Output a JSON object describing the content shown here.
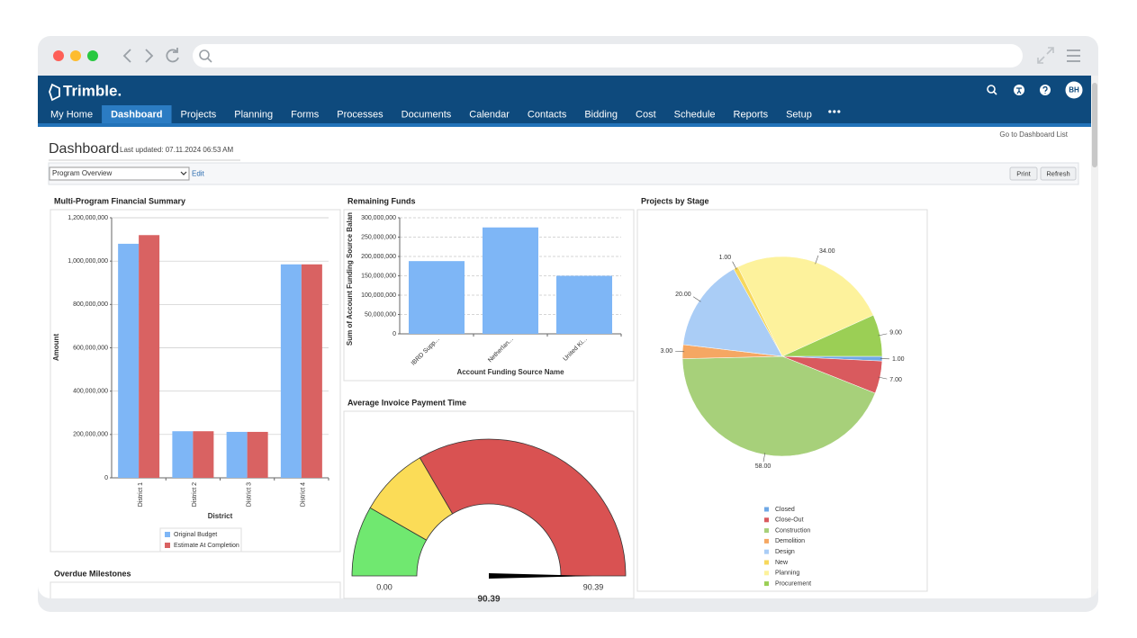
{
  "app": {
    "logo": "Trimble.",
    "tabs": [
      "My Home",
      "Dashboard",
      "Projects",
      "Planning",
      "Forms",
      "Processes",
      "Documents",
      "Calendar",
      "Contacts",
      "Bidding",
      "Cost",
      "Schedule",
      "Reports",
      "Setup"
    ],
    "active_tab": 1,
    "user": "BH"
  },
  "dashboard": {
    "title": "Dashboard",
    "last_updated": "Last updated: 07.11.2024 06:53 AM",
    "list_link": "Go to Dashboard List",
    "selector": "Program Overview",
    "edit": "Edit",
    "buttons": [
      "Print",
      "Refresh"
    ]
  },
  "chart_data": [
    {
      "type": "bar",
      "title": "Multi-Program Financial Summary",
      "ylabel": "Amount",
      "xlabel": "District",
      "categories": [
        "District 1",
        "District 2",
        "District 3",
        "District 4"
      ],
      "series": [
        {
          "name": "Original Budget",
          "color": "#7eb6f6",
          "values": [
            1080000000,
            215000000,
            212000000,
            985000000
          ]
        },
        {
          "name": "Estimate At Completion",
          "color": "#d96262",
          "values": [
            1120000000,
            215000000,
            212000000,
            985000000
          ]
        }
      ],
      "ylim": [
        0,
        1200000000
      ],
      "yticks": [
        0,
        {
          "value": 200000000,
          "label": "200,000,000"
        },
        {
          "value": 400000000,
          "label": "400,000,000"
        },
        {
          "value": 600000000,
          "label": "600,000,000"
        },
        {
          "value": 800000000,
          "label": "800,000,000"
        },
        {
          "value": 1000000000,
          "label": "1,000,000,000"
        },
        {
          "value": 1200000000,
          "label": "1,200,000,000"
        }
      ],
      "grid": true,
      "legend": "bottom"
    },
    {
      "type": "bar",
      "title": "Remaining Funds",
      "ylabel": "Sum  of Account Funding Source Balan",
      "xlabel": "Account Funding Source Name",
      "categories": [
        "IBRD Supp...",
        "Netherlan...",
        "United Ki..."
      ],
      "values": [
        188000000,
        275000000,
        150000000
      ],
      "color": "#7eb6f6",
      "ylim": [
        0,
        300000000
      ],
      "yticks": [
        0,
        {
          "value": 50000000,
          "label": "50,000,000"
        },
        {
          "value": 100000000,
          "label": "100,000,000"
        },
        {
          "value": 150000000,
          "label": "150,000,000"
        },
        {
          "value": 200000000,
          "label": "200,000,000"
        },
        {
          "value": 250000000,
          "label": "250,000,000"
        },
        {
          "value": 300000000,
          "label": "300,000,000"
        }
      ],
      "grid": true
    },
    {
      "type": "gauge",
      "title": "Average Invoice Payment Time",
      "min": 0,
      "min_label": "0.00",
      "max": 90.39,
      "max_label": "90.39",
      "value": 90.39,
      "value_label": "90.39",
      "bands": [
        {
          "from": 0,
          "to": 15,
          "color": "#70e870"
        },
        {
          "from": 15,
          "to": 30,
          "color": "#fbdc57"
        },
        {
          "from": 30,
          "to": 90.39,
          "color": "#d95252"
        }
      ]
    },
    {
      "type": "pie",
      "title": "Projects by Stage",
      "categories": [
        "Closed",
        "Close-Out",
        "Construction",
        "Demolition",
        "Design",
        "New",
        "Planning",
        "Procurement"
      ],
      "values": [
        1,
        7,
        58,
        3,
        20,
        1,
        34,
        9
      ],
      "value_labels": [
        "1.00",
        "7.00",
        "58.00",
        "3.00",
        "20.00",
        "1.00",
        "34.00",
        "9.00"
      ],
      "colors": [
        "#6fa8e6",
        "#d95a5e",
        "#a7d07a",
        "#f5a763",
        "#aacdf6",
        "#f7d85c",
        "#fdf29c",
        "#9bcf55"
      ],
      "legend": "bottom"
    }
  ],
  "panels": {
    "overdue_title": "Overdue Milestones"
  }
}
